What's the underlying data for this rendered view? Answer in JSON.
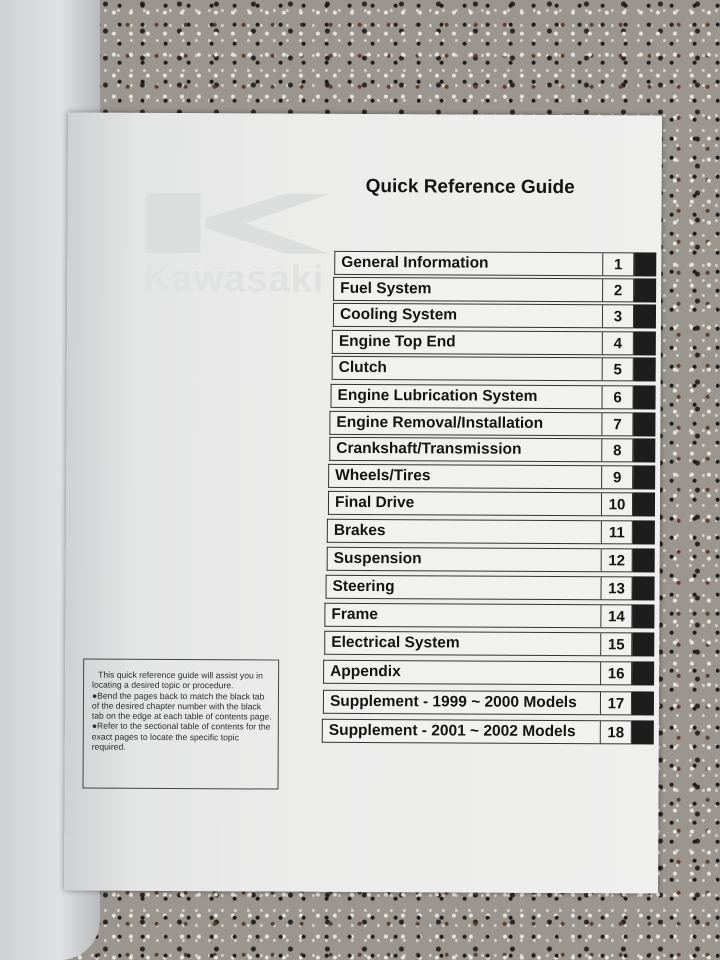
{
  "logo_watermark": "Kawasaki",
  "title": "Quick Reference Guide",
  "chapters": [
    {
      "label": "General Information",
      "number": "1"
    },
    {
      "label": "Fuel System",
      "number": "2"
    },
    {
      "label": "Cooling System",
      "number": "3"
    },
    {
      "label": "Engine Top End",
      "number": "4"
    },
    {
      "label": "Clutch",
      "number": "5"
    },
    {
      "label": "Engine Lubrication System",
      "number": "6"
    },
    {
      "label": "Engine Removal/Installation",
      "number": "7"
    },
    {
      "label": "Crankshaft/Transmission",
      "number": "8"
    },
    {
      "label": "Wheels/Tires",
      "number": "9"
    },
    {
      "label": "Final Drive",
      "number": "10"
    },
    {
      "label": "Brakes",
      "number": "11"
    },
    {
      "label": "Suspension",
      "number": "12"
    },
    {
      "label": "Steering",
      "number": "13"
    },
    {
      "label": "Frame",
      "number": "14"
    },
    {
      "label": "Electrical System",
      "number": "15"
    },
    {
      "label": "Appendix",
      "number": "16"
    },
    {
      "label": "Supplement - 1999 ~ 2000 Models",
      "number": "17"
    },
    {
      "label": "Supplement - 2001 ~ 2002 Models",
      "number": "18"
    }
  ],
  "note": {
    "intro": "This quick reference guide will assist you in locating a desired topic or procedure.",
    "bullet1": "●Bend the pages back to match the black tab of the desired chapter number with the black tab on the edge at each table of contents page.",
    "bullet2": "●Refer to the sectional table of contents for the exact pages to locate the specific topic required."
  }
}
